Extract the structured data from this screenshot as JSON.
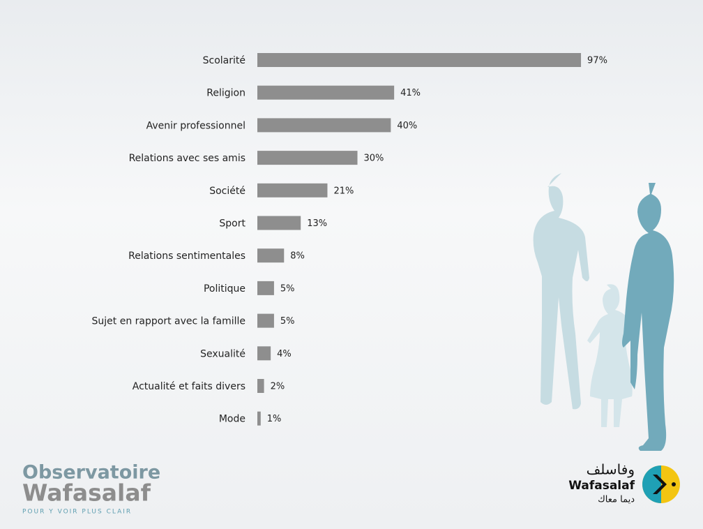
{
  "chart_data": {
    "type": "bar",
    "orientation": "horizontal",
    "categories": [
      "Scolarité",
      "Religion",
      "Avenir professionnel",
      "Relations avec ses amis",
      "Société",
      "Sport",
      "Relations sentimentales",
      "Politique",
      "Sujet en rapport avec la famille",
      "Sexualité",
      "Actualité et faits divers",
      "Mode"
    ],
    "values": [
      97,
      41,
      40,
      30,
      21,
      13,
      8,
      5,
      5,
      4,
      2,
      1
    ],
    "value_labels": [
      "97%",
      "41%",
      "40%",
      "30%",
      "21%",
      "13%",
      "8%",
      "5%",
      "5%",
      "4%",
      "2%",
      "1%"
    ],
    "color": "#8e8e8e"
  },
  "logos": {
    "left": {
      "line1": "Observatoire",
      "line2": "Wafasalaf",
      "tagline": "POUR Y VOIR PLUS CLAIR"
    },
    "right": {
      "arabic": "وفاسلف",
      "name": "Wafasalaf",
      "arabic_tagline": "ديما معاك"
    }
  }
}
